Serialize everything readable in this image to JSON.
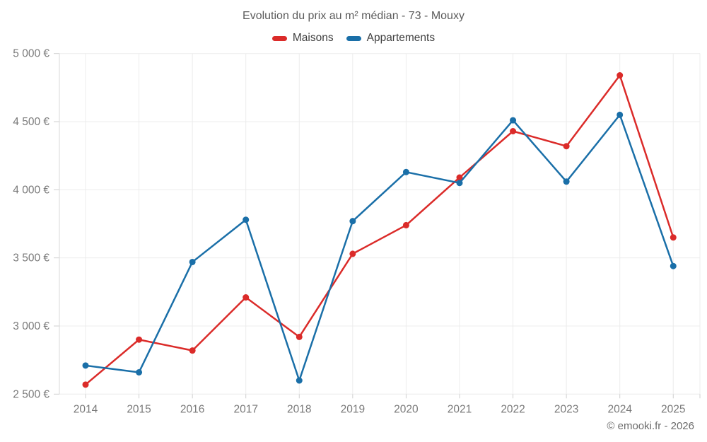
{
  "title": "Evolution du prix au m² médian - 73 - Mouxy",
  "attribution": "© emooki.fr - 2026",
  "colors": {
    "maisons": "#db2b29",
    "appartements": "#1a6fa8",
    "grid": "#ececec",
    "axis_line": "#d9d9d9",
    "tick": "#cfcfcf",
    "axis_text": "#7a7a7a",
    "title_text": "#5c5c5c",
    "legend_text": "#3f3f3f",
    "background": "#ffffff"
  },
  "chart_data": {
    "type": "line",
    "x": [
      2014,
      2015,
      2016,
      2017,
      2018,
      2019,
      2020,
      2021,
      2022,
      2023,
      2024,
      2025
    ],
    "series": [
      {
        "name": "Maisons",
        "color": "#db2b29",
        "values": [
          2570,
          2900,
          2820,
          3210,
          2920,
          3530,
          3740,
          4090,
          4430,
          4320,
          4840,
          3650
        ]
      },
      {
        "name": "Appartements",
        "color": "#1a6fa8",
        "values": [
          2710,
          2660,
          3470,
          3780,
          2600,
          3770,
          4130,
          4050,
          4510,
          4060,
          4550,
          3440
        ]
      }
    ],
    "title": "Evolution du prix au m² médian - 73 - Mouxy",
    "xlabel": "",
    "ylabel": "",
    "ylim": [
      2500,
      5000
    ],
    "ytick_step": 500,
    "ytick_suffix": "€",
    "grid": true,
    "legend_position": "top",
    "marker": "circle"
  }
}
